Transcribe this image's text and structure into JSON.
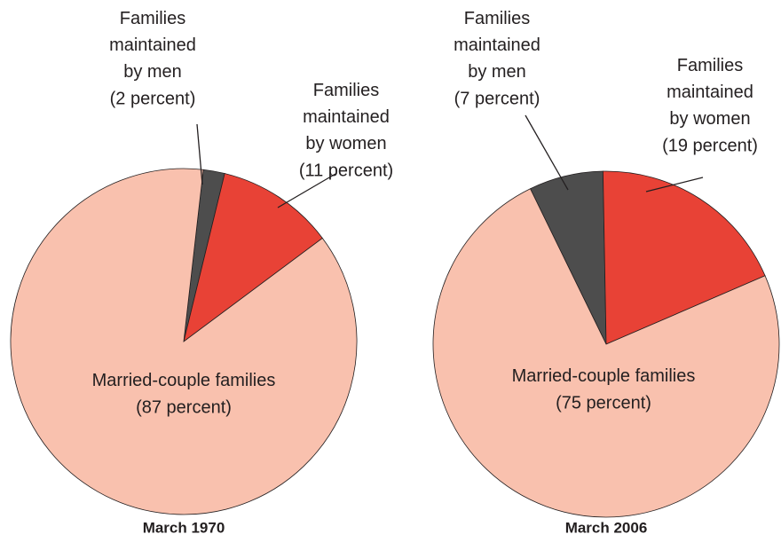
{
  "chart_data": [
    {
      "type": "pie",
      "title": "March 1970",
      "categories": [
        "Families maintained by men",
        "Families maintained by women",
        "Married-couple families"
      ],
      "values": [
        2,
        11,
        87
      ],
      "value_labels": [
        "(2 percent)",
        "(11 percent)",
        "(87 percent)"
      ],
      "colors": [
        "#4d4d4d",
        "#e84236",
        "#f9c1ae"
      ]
    },
    {
      "type": "pie",
      "title": "March 2006",
      "categories": [
        "Families maintained by men",
        "Families maintained by women",
        "Married-couple families"
      ],
      "values": [
        7,
        19,
        75
      ],
      "value_labels": [
        "(7 percent)",
        "(19 percent)",
        "(75 percent)"
      ],
      "colors": [
        "#4d4d4d",
        "#e84236",
        "#f9c1ae"
      ]
    }
  ]
}
